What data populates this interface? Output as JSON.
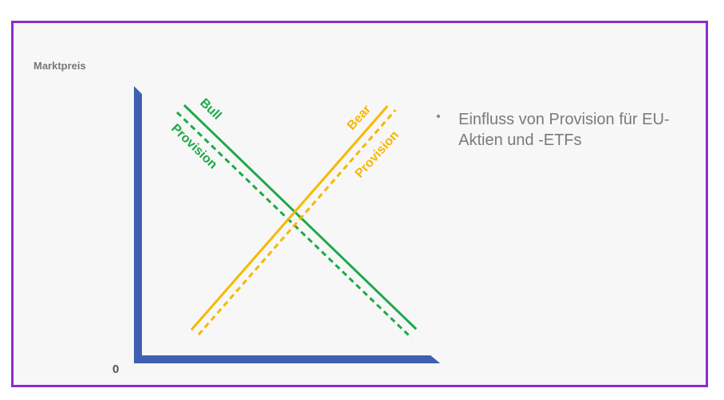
{
  "axis": {
    "ylabel": "Marktpreis",
    "origin_label": "0"
  },
  "lines": {
    "bull_label": "Bull",
    "bull_provision_label": "Provision",
    "bear_label": "Bear",
    "bear_provision_label": "Provision"
  },
  "bullet": {
    "text": "Einfluss von Provision für EU-Aktien und -ETFs"
  },
  "colors": {
    "frame": "#8a2bd0",
    "axis": "#3f5fb0",
    "bull": "#1fa84a",
    "bear": "#f5b800"
  }
}
